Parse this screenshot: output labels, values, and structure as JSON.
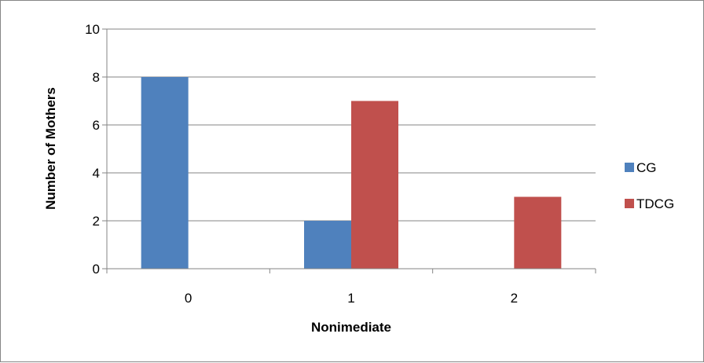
{
  "chart_data": {
    "type": "bar",
    "categories": [
      "0",
      "1",
      "2"
    ],
    "series": [
      {
        "name": "CG",
        "values": [
          8,
          2,
          0
        ],
        "color": "#4F81BD"
      },
      {
        "name": "TDCG",
        "values": [
          0,
          7,
          3
        ],
        "color": "#C0504D"
      }
    ],
    "xlabel": "Nonimediate",
    "ylabel": "Number of Mothers",
    "ylim": [
      0,
      10
    ],
    "yticks": [
      "0",
      "2",
      "4",
      "6",
      "8",
      "10"
    ],
    "grid": true,
    "legend": "right"
  }
}
